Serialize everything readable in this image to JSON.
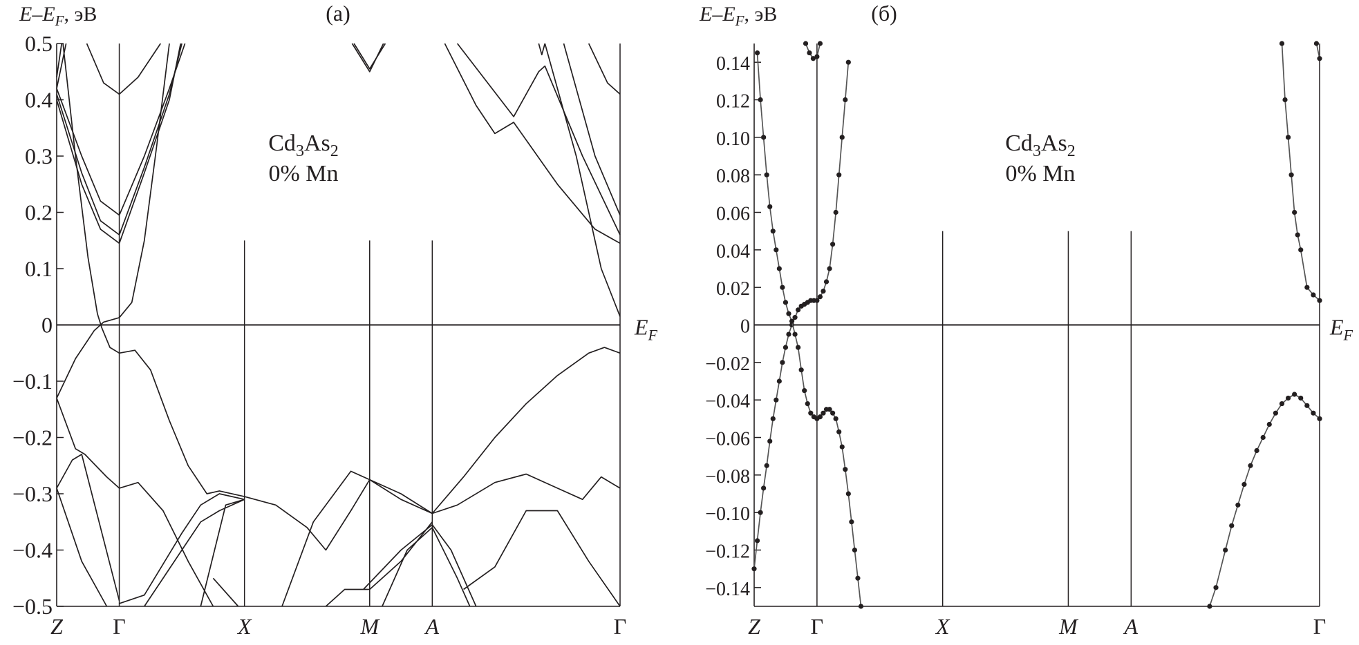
{
  "chart_data": [
    {
      "type": "line",
      "panel_label": "(a)",
      "ylabel": "E–E_F, эВ",
      "ylabel_parts": {
        "main": "E–E",
        "sub": "F",
        "unit": ", эВ"
      },
      "annotation": {
        "formula_parts": [
          "Cd",
          "3",
          "As",
          "2"
        ],
        "line2": "0% Mn"
      },
      "fermi_label": {
        "main": "E",
        "sub": "F"
      },
      "ylim": [
        -0.5,
        0.5
      ],
      "yticks": [
        0.5,
        0.4,
        0.3,
        0.2,
        0.1,
        0,
        -0.1,
        -0.2,
        -0.3,
        -0.4,
        -0.5
      ],
      "ytick_labels": [
        "0.5",
        "0.4",
        "0.3",
        "0.2",
        "0.1",
        "0",
        "−0.1",
        "−0.2",
        "−0.3",
        "−0.4",
        "−0.5"
      ],
      "kpoints": [
        {
          "label": "Z",
          "k": 0,
          "italic": true
        },
        {
          "label": "Γ",
          "k": 1,
          "italic": false
        },
        {
          "label": "X",
          "k": 3,
          "italic": true
        },
        {
          "label": "M",
          "k": 5,
          "italic": true
        },
        {
          "label": "A",
          "k": 6,
          "italic": true
        },
        {
          "label": "Γ",
          "k": 9,
          "italic": false
        }
      ],
      "markers": false,
      "color": "#231f20",
      "bands": [
        [
          [
            0.48,
            0.5
          ],
          [
            0.75,
            0.43
          ],
          [
            1,
            0.41
          ],
          [
            1.3,
            0.44
          ],
          [
            1.66,
            0.5
          ]
        ],
        [
          [
            0,
            0.42
          ],
          [
            0.4,
            0.3
          ],
          [
            0.7,
            0.22
          ],
          [
            1,
            0.195
          ],
          [
            1.4,
            0.3
          ],
          [
            1.8,
            0.42
          ],
          [
            2.05,
            0.5
          ]
        ],
        [
          [
            0,
            0.41
          ],
          [
            0.4,
            0.27
          ],
          [
            0.7,
            0.185
          ],
          [
            1,
            0.16
          ],
          [
            1.4,
            0.28
          ],
          [
            1.8,
            0.41
          ],
          [
            2.0,
            0.5
          ]
        ],
        [
          [
            0,
            0.4
          ],
          [
            0.4,
            0.25
          ],
          [
            0.7,
            0.17
          ],
          [
            1,
            0.145
          ],
          [
            1.4,
            0.27
          ],
          [
            1.8,
            0.4
          ],
          [
            1.98,
            0.5
          ]
        ],
        [
          [
            0,
            0.42
          ],
          [
            0.15,
            0.5
          ]
        ],
        [
          [
            0,
            0.44
          ],
          [
            0.08,
            0.5
          ]
        ],
        [
          [
            0.1,
            0.5
          ],
          [
            0.3,
            0.3
          ],
          [
            0.5,
            0.12
          ],
          [
            0.65,
            0.02
          ],
          [
            0.72,
            -0.005
          ],
          [
            0.85,
            -0.04
          ],
          [
            1,
            -0.05
          ],
          [
            1.25,
            -0.045
          ],
          [
            1.5,
            -0.08
          ],
          [
            1.8,
            -0.17
          ],
          [
            2.1,
            -0.25
          ],
          [
            2.4,
            -0.3
          ],
          [
            2.6,
            -0.295
          ],
          [
            3,
            -0.305
          ],
          [
            3.5,
            -0.32
          ],
          [
            4,
            -0.36
          ],
          [
            4.3,
            -0.4
          ],
          [
            4.7,
            -0.33
          ],
          [
            5,
            -0.275
          ],
          [
            5.5,
            -0.3
          ],
          [
            6,
            -0.335
          ],
          [
            6.5,
            -0.27
          ],
          [
            7,
            -0.2
          ],
          [
            7.5,
            -0.14
          ],
          [
            8,
            -0.09
          ],
          [
            8.5,
            -0.05
          ],
          [
            8.75,
            -0.04
          ],
          [
            9,
            -0.05
          ]
        ],
        [
          [
            0,
            -0.13
          ],
          [
            0.3,
            -0.06
          ],
          [
            0.6,
            -0.01
          ],
          [
            0.75,
            0.005
          ],
          [
            1,
            0.013
          ],
          [
            1.2,
            0.04
          ],
          [
            1.4,
            0.15
          ],
          [
            1.6,
            0.32
          ],
          [
            1.8,
            0.5
          ]
        ],
        [
          [
            0,
            -0.13
          ],
          [
            0.3,
            -0.22
          ],
          [
            0.45,
            -0.23
          ],
          [
            0.8,
            -0.27
          ],
          [
            1,
            -0.29
          ],
          [
            1.3,
            -0.28
          ],
          [
            1.7,
            -0.33
          ],
          [
            2.1,
            -0.42
          ],
          [
            2.5,
            -0.5
          ]
        ],
        [
          [
            0,
            -0.29
          ],
          [
            0.25,
            -0.24
          ],
          [
            0.4,
            -0.23
          ],
          [
            0.7,
            -0.36
          ],
          [
            1,
            -0.49
          ]
        ],
        [
          [
            0,
            -0.29
          ],
          [
            0.4,
            -0.42
          ],
          [
            0.8,
            -0.5
          ]
        ],
        [
          [
            1,
            -0.495
          ],
          [
            1.4,
            -0.48
          ],
          [
            2,
            -0.37
          ],
          [
            2.3,
            -0.32
          ],
          [
            2.6,
            -0.3
          ],
          [
            3,
            -0.31
          ]
        ],
        [
          [
            1.4,
            -0.5
          ],
          [
            2,
            -0.4
          ],
          [
            2.3,
            -0.35
          ],
          [
            2.6,
            -0.33
          ],
          [
            3,
            -0.31
          ]
        ],
        [
          [
            2.3,
            -0.5
          ],
          [
            2.7,
            -0.32
          ],
          [
            3,
            -0.31
          ]
        ],
        [
          [
            2.5,
            -0.45
          ],
          [
            2.9,
            -0.5
          ]
        ],
        [
          [
            3.6,
            -0.5
          ],
          [
            4.1,
            -0.35
          ],
          [
            4.7,
            -0.26
          ],
          [
            5,
            -0.275
          ],
          [
            5.5,
            -0.31
          ],
          [
            6,
            -0.335
          ],
          [
            6.4,
            -0.32
          ],
          [
            7,
            -0.28
          ],
          [
            7.5,
            -0.265
          ],
          [
            8,
            -0.29
          ],
          [
            8.4,
            -0.31
          ],
          [
            8.7,
            -0.27
          ],
          [
            9,
            -0.29
          ]
        ],
        [
          [
            4.9,
            -0.47
          ],
          [
            5.5,
            -0.4
          ],
          [
            6,
            -0.355
          ],
          [
            6.3,
            -0.4
          ],
          [
            6.7,
            -0.5
          ]
        ],
        [
          [
            5.2,
            -0.5
          ],
          [
            5.6,
            -0.4
          ],
          [
            6,
            -0.36
          ],
          [
            6.4,
            -0.45
          ],
          [
            6.6,
            -0.5
          ]
        ],
        [
          [
            4.3,
            -0.5
          ],
          [
            4.6,
            -0.47
          ],
          [
            5,
            -0.47
          ],
          [
            5.5,
            -0.42
          ],
          [
            6,
            -0.35
          ]
        ],
        [
          [
            6.5,
            -0.47
          ],
          [
            7,
            -0.43
          ],
          [
            7.5,
            -0.33
          ],
          [
            8,
            -0.33
          ],
          [
            8.5,
            -0.42
          ],
          [
            9,
            -0.5
          ]
        ],
        [
          [
            4.75,
            0.5
          ],
          [
            5,
            0.455
          ],
          [
            5.25,
            0.5
          ]
        ],
        [
          [
            4.72,
            0.5
          ],
          [
            5,
            0.45
          ],
          [
            5.22,
            0.5
          ]
        ],
        [
          [
            6.2,
            0.5
          ],
          [
            6.7,
            0.39
          ],
          [
            7,
            0.34
          ],
          [
            7.3,
            0.36
          ],
          [
            8,
            0.25
          ],
          [
            8.6,
            0.17
          ],
          [
            9,
            0.145
          ]
        ],
        [
          [
            6.4,
            0.5
          ],
          [
            7.3,
            0.37
          ],
          [
            7.7,
            0.45
          ],
          [
            7.8,
            0.46
          ],
          [
            8.4,
            0.3
          ],
          [
            9,
            0.16
          ]
        ],
        [
          [
            7.8,
            0.5
          ],
          [
            8.3,
            0.3
          ],
          [
            8.7,
            0.1
          ],
          [
            9,
            0.015
          ]
        ],
        [
          [
            8.1,
            0.5
          ],
          [
            8.6,
            0.3
          ],
          [
            9,
            0.195
          ]
        ],
        [
          [
            8.5,
            0.5
          ],
          [
            8.8,
            0.43
          ],
          [
            9,
            0.41
          ]
        ],
        [
          [
            7.7,
            0.5
          ],
          [
            7.75,
            0.48
          ],
          [
            7.8,
            0.5
          ]
        ]
      ]
    },
    {
      "type": "scatter-line",
      "panel_label": "(б)",
      "ylabel": "E–E_F, эВ",
      "ylabel_parts": {
        "main": "E–E",
        "sub": "F",
        "unit": ", эВ"
      },
      "annotation": {
        "formula_parts": [
          "Cd",
          "3",
          "As",
          "2"
        ],
        "line2": "0% Mn"
      },
      "fermi_label": {
        "main": "E",
        "sub": "F"
      },
      "ylim": [
        -0.15,
        0.15
      ],
      "yticks": [
        0.14,
        0.12,
        0.1,
        0.08,
        0.06,
        0.04,
        0.02,
        0,
        -0.02,
        -0.04,
        -0.06,
        -0.08,
        -0.1,
        -0.12,
        -0.14
      ],
      "ytick_labels": [
        "0.14",
        "0.12",
        "0.10",
        "0.08",
        "0.06",
        "0.04",
        "0.02",
        "0",
        "−0.02",
        "−0.04",
        "−0.06",
        "−0.08",
        "−0.10",
        "−0.12",
        "−0.14"
      ],
      "kpoints": [
        {
          "label": "Z",
          "k": 0,
          "italic": true
        },
        {
          "label": "Γ",
          "k": 1,
          "italic": false
        },
        {
          "label": "X",
          "k": 3,
          "italic": true
        },
        {
          "label": "M",
          "k": 5,
          "italic": true
        },
        {
          "label": "A",
          "k": 6,
          "italic": true
        },
        {
          "label": "Γ",
          "k": 9,
          "italic": false
        }
      ],
      "markers": true,
      "color": "#231f20",
      "bands": [
        [
          [
            0,
            -0.13
          ],
          [
            0.05,
            -0.115
          ],
          [
            0.1,
            -0.1
          ],
          [
            0.15,
            -0.087
          ],
          [
            0.2,
            -0.075
          ],
          [
            0.25,
            -0.062
          ],
          [
            0.3,
            -0.05
          ],
          [
            0.35,
            -0.04
          ],
          [
            0.4,
            -0.03
          ],
          [
            0.45,
            -0.02
          ],
          [
            0.5,
            -0.012
          ],
          [
            0.55,
            -0.005
          ],
          [
            0.6,
            0.0
          ],
          [
            0.65,
            0.004
          ],
          [
            0.7,
            0.008
          ],
          [
            0.75,
            0.01
          ],
          [
            0.8,
            0.011
          ],
          [
            0.85,
            0.012
          ],
          [
            0.9,
            0.013
          ],
          [
            0.95,
            0.013
          ],
          [
            1,
            0.013
          ],
          [
            1.05,
            0.015
          ],
          [
            1.1,
            0.018
          ],
          [
            1.15,
            0.023
          ],
          [
            1.2,
            0.03
          ],
          [
            1.25,
            0.043
          ],
          [
            1.3,
            0.06
          ],
          [
            1.35,
            0.08
          ],
          [
            1.4,
            0.1
          ],
          [
            1.45,
            0.12
          ],
          [
            1.5,
            0.14
          ]
        ],
        [
          [
            0.05,
            0.145
          ],
          [
            0.1,
            0.12
          ],
          [
            0.15,
            0.1
          ],
          [
            0.2,
            0.08
          ],
          [
            0.25,
            0.063
          ],
          [
            0.3,
            0.05
          ],
          [
            0.35,
            0.04
          ],
          [
            0.4,
            0.03
          ],
          [
            0.45,
            0.02
          ],
          [
            0.5,
            0.012
          ],
          [
            0.55,
            0.006
          ],
          [
            0.6,
            0.002
          ],
          [
            0.65,
            -0.005
          ],
          [
            0.7,
            -0.012
          ],
          [
            0.75,
            -0.024
          ],
          [
            0.8,
            -0.035
          ],
          [
            0.85,
            -0.042
          ],
          [
            0.9,
            -0.047
          ],
          [
            0.95,
            -0.049
          ],
          [
            1,
            -0.05
          ],
          [
            1.05,
            -0.049
          ],
          [
            1.1,
            -0.047
          ],
          [
            1.15,
            -0.045
          ],
          [
            1.2,
            -0.045
          ],
          [
            1.25,
            -0.047
          ],
          [
            1.3,
            -0.05
          ],
          [
            1.35,
            -0.057
          ],
          [
            1.4,
            -0.065
          ],
          [
            1.45,
            -0.077
          ],
          [
            1.5,
            -0.09
          ],
          [
            1.55,
            -0.105
          ],
          [
            1.6,
            -0.12
          ],
          [
            1.65,
            -0.135
          ],
          [
            1.7,
            -0.15
          ]
        ],
        [
          [
            0.82,
            0.15
          ],
          [
            0.88,
            0.145
          ],
          [
            0.94,
            0.142
          ],
          [
            1,
            0.143
          ],
          [
            1.05,
            0.15
          ]
        ],
        [
          [
            8.4,
            0.15
          ],
          [
            8.45,
            0.12
          ],
          [
            8.5,
            0.1
          ],
          [
            8.55,
            0.08
          ],
          [
            8.6,
            0.06
          ],
          [
            8.65,
            0.048
          ],
          [
            8.7,
            0.04
          ],
          [
            8.8,
            0.02
          ],
          [
            8.9,
            0.016
          ],
          [
            9,
            0.013
          ]
        ],
        [
          [
            8.95,
            0.15
          ],
          [
            9,
            0.142
          ]
        ],
        [
          [
            7.25,
            -0.15
          ],
          [
            7.35,
            -0.14
          ],
          [
            7.5,
            -0.12
          ],
          [
            7.6,
            -0.107
          ],
          [
            7.7,
            -0.096
          ],
          [
            7.8,
            -0.085
          ],
          [
            7.9,
            -0.075
          ],
          [
            8.0,
            -0.067
          ],
          [
            8.1,
            -0.06
          ],
          [
            8.2,
            -0.053
          ],
          [
            8.3,
            -0.047
          ],
          [
            8.4,
            -0.042
          ],
          [
            8.5,
            -0.039
          ],
          [
            8.6,
            -0.037
          ],
          [
            8.7,
            -0.039
          ],
          [
            8.8,
            -0.043
          ],
          [
            8.9,
            -0.047
          ],
          [
            9,
            -0.05
          ]
        ]
      ]
    }
  ]
}
